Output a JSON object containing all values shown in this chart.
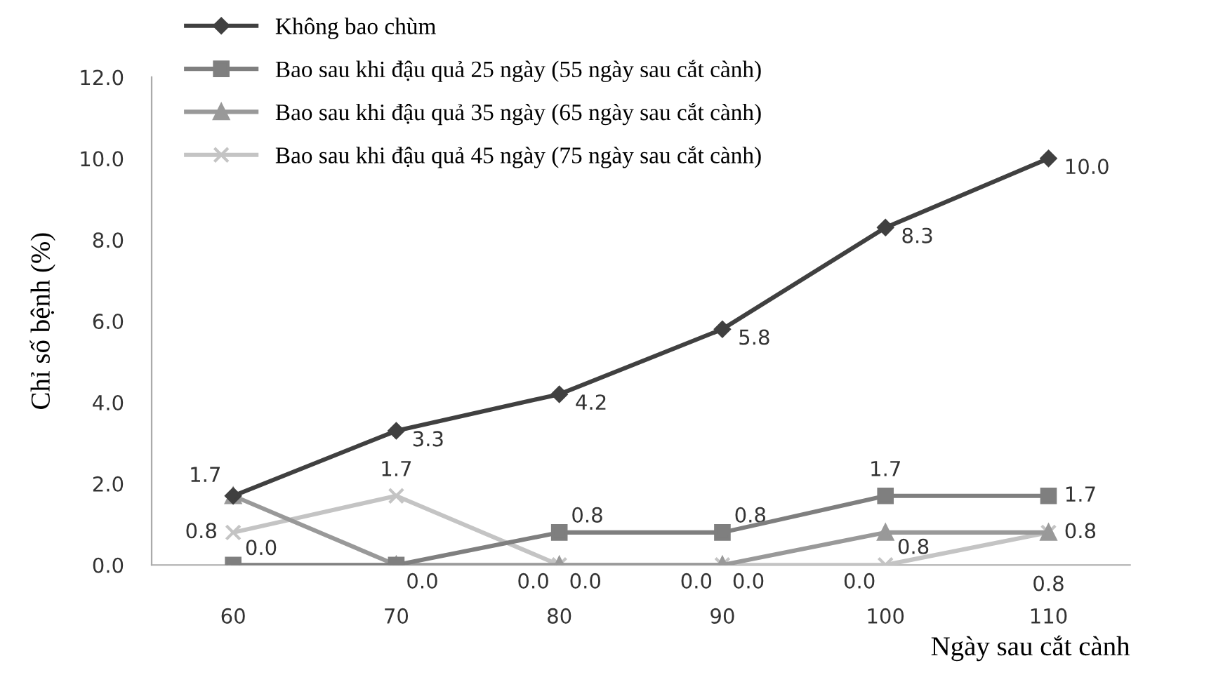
{
  "chart_data": {
    "type": "line",
    "xlabel": "Ngày sau cắt cành",
    "ylabel": "Chỉ số bệnh (%)",
    "categories": [
      "60",
      "70",
      "80",
      "90",
      "100",
      "110"
    ],
    "series": [
      {
        "name": "Không bao chùm",
        "color": "#404040",
        "marker": "diamond",
        "values": [
          1.7,
          3.3,
          4.2,
          5.8,
          8.3,
          10.0
        ],
        "value_labels": [
          "1.7",
          "3.3",
          "4.2",
          "5.8",
          "8.3",
          "10.0"
        ]
      },
      {
        "name": "Bao sau khi đậu quả 25 ngày (55 ngày sau cắt cành)",
        "color": "#7f7f7f",
        "marker": "square",
        "values": [
          0.0,
          0.0,
          0.8,
          0.8,
          1.7,
          1.7
        ],
        "value_labels": [
          "0.0",
          "0.0",
          "0.8",
          "0.8",
          "1.7",
          "1.7"
        ]
      },
      {
        "name": "Bao sau khi đậu quả 35 ngày (65 ngày sau cắt cành)",
        "color": "#999999",
        "marker": "triangle",
        "values": [
          1.7,
          0.0,
          0.0,
          0.0,
          0.8,
          0.8
        ],
        "value_labels": [
          null,
          null,
          "0.0",
          "0.0",
          "0.8",
          "0.8"
        ]
      },
      {
        "name": "Bao sau khi đậu quả 45 ngày (75 ngày sau cắt cành)",
        "color": "#c4c4c4",
        "marker": "cross",
        "values": [
          0.8,
          1.7,
          0.0,
          0.0,
          0.0,
          0.8
        ],
        "value_labels": [
          "0.8",
          "1.7",
          "0.0",
          "0.0",
          "0.0",
          "0.8"
        ]
      }
    ],
    "ylim": [
      0,
      12
    ],
    "yticks": [
      {
        "value": 0,
        "label": "0.0"
      },
      {
        "value": 2,
        "label": "2.0"
      },
      {
        "value": 4,
        "label": "4.0"
      },
      {
        "value": 6,
        "label": "6.0"
      },
      {
        "value": 8,
        "label": "8.0"
      },
      {
        "value": 10,
        "label": "10.0"
      },
      {
        "value": 12,
        "label": "12.0"
      }
    ],
    "legend": "top left",
    "grid": false
  }
}
